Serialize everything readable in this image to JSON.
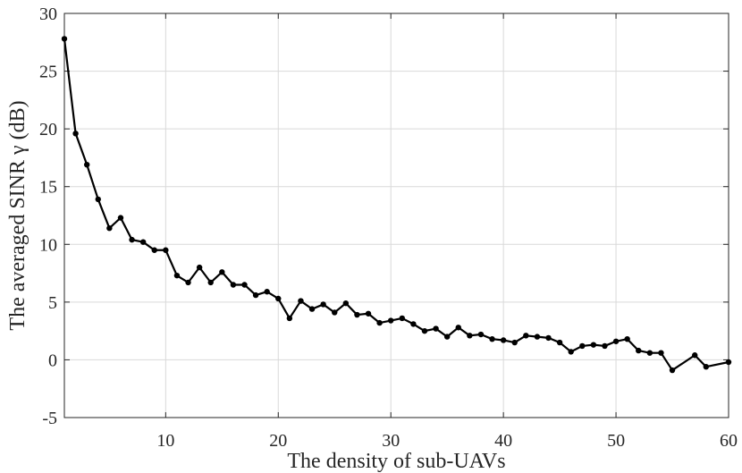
{
  "chart_data": {
    "type": "line",
    "title": "",
    "xlabel": "The density of sub-UAVs",
    "ylabel": "The averaged SINR γ (dB)",
    "xlim": [
      1,
      60
    ],
    "ylim": [
      -5,
      30
    ],
    "xticks": [
      10,
      20,
      30,
      40,
      50,
      60
    ],
    "yticks": [
      -5,
      0,
      5,
      10,
      15,
      20,
      25,
      30
    ],
    "grid": true,
    "series": [
      {
        "color": "#000000",
        "marker": "circle",
        "x": [
          1,
          2,
          3,
          4,
          5,
          6,
          7,
          8,
          9,
          10,
          11,
          12,
          13,
          14,
          15,
          16,
          17,
          18,
          19,
          20,
          21,
          22,
          23,
          24,
          25,
          26,
          27,
          28,
          29,
          30,
          31,
          32,
          33,
          34,
          35,
          36,
          37,
          38,
          39,
          40,
          41,
          42,
          43,
          44,
          45,
          46,
          47,
          48,
          49,
          50,
          51,
          52,
          53,
          54,
          55,
          56,
          57,
          58,
          59,
          60
        ],
        "values": [
          27.8,
          19.6,
          16.9,
          13.9,
          11.4,
          12.3,
          10.4,
          10.2,
          9.5,
          9.5,
          7.3,
          6.7,
          8.0,
          6.7,
          7.6,
          6.5,
          6.5,
          5.6,
          5.9,
          5.3,
          3.6,
          5.1,
          4.4,
          4.8,
          4.1,
          4.9,
          3.9,
          4.0,
          3.2,
          3.4,
          3.6,
          3.1,
          2.5,
          2.7,
          2.0,
          2.8,
          2.1,
          2.2,
          1.8,
          1.7,
          1.5,
          2.1,
          2.0,
          1.9,
          1.5,
          0.7,
          1.2,
          1.3,
          1.2,
          1.6,
          1.8,
          0.8,
          0.6,
          0.6,
          -0.9,
          null,
          0.4,
          -0.6,
          null,
          -0.2
        ]
      }
    ]
  }
}
